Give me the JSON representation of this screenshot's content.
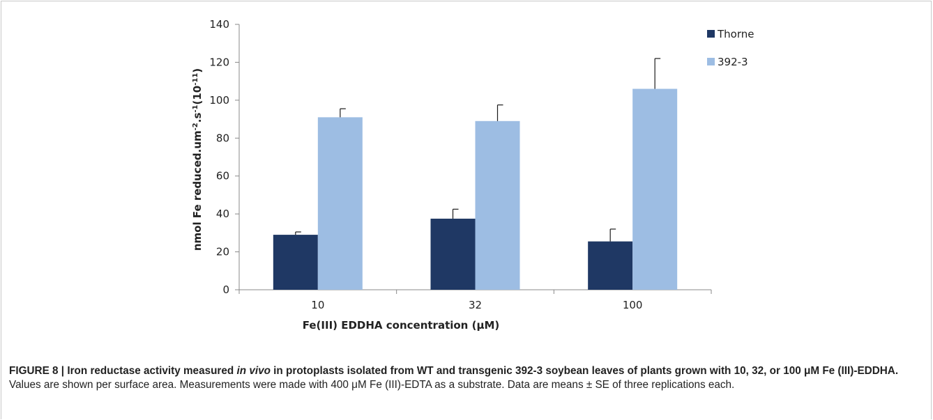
{
  "chart_data": {
    "type": "bar",
    "categories": [
      "10",
      "32",
      "100"
    ],
    "series": [
      {
        "name": "Thorne",
        "color": "#1f3864",
        "values": [
          29,
          37.5,
          25.5
        ],
        "errors": [
          1.5,
          5,
          6.5
        ]
      },
      {
        "name": "392-3",
        "color": "#9dbde3",
        "values": [
          91,
          89,
          106
        ],
        "errors": [
          4.5,
          8.5,
          16
        ]
      }
    ],
    "ylim": [
      0,
      140
    ],
    "yticks": [
      0,
      20,
      40,
      60,
      80,
      100,
      120,
      140
    ],
    "xlabel": "Fe(III) EDDHA concentration (μM)",
    "ylabel_main": "nmol Fe reduced.um",
    "ylabel_sup1": "-2",
    "ylabel_mid": ".s",
    "ylabel_sup2": "-1",
    "ylabel_end": "(10",
    "ylabel_sup3": "-11",
    "ylabel_close": ")",
    "legend_position": "top-right",
    "grid": false
  },
  "caption": {
    "label": "FIGURE 8 | ",
    "title_part1": "Iron reductase activity measured ",
    "title_italic": "in vivo",
    "title_part2": " in protoplasts isolated from WT and transgenic 392-3 soybean leaves of plants grown with 10, 32, or 100 μM Fe (III)-EDDHA.",
    "body": " Values are shown per surface area. Measurements were made with 400 μM Fe (III)-EDTA as a substrate. Data are means ± SE of three replications each."
  }
}
